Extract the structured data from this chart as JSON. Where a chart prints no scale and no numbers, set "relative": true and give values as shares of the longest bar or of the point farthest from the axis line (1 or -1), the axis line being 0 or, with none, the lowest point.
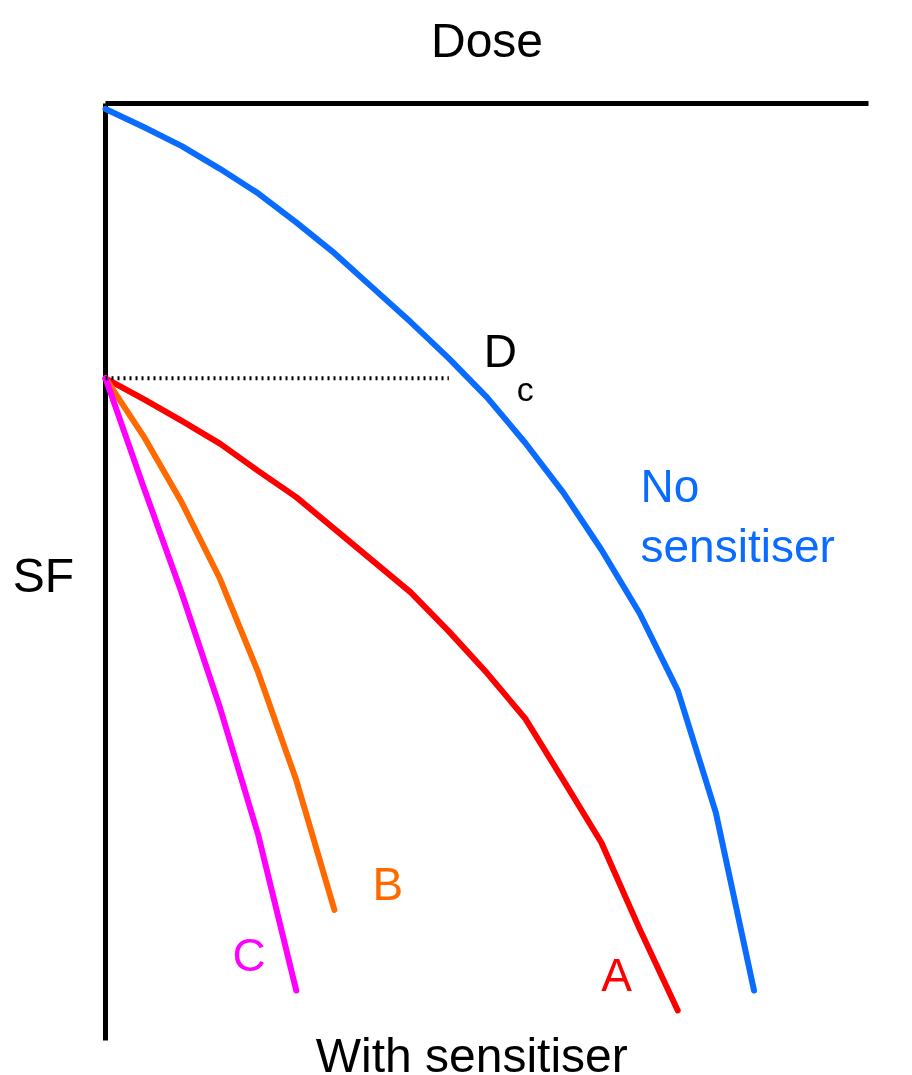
{
  "chart_data": {
    "type": "line",
    "relative": true,
    "xlabel": "Dose",
    "ylabel": "SF",
    "line_style": "solid",
    "categories": [
      null,
      null,
      null,
      null,
      null,
      null,
      null,
      null,
      null,
      null,
      null,
      null,
      null,
      null,
      null,
      null,
      null,
      null
    ],
    "series": [
      {
        "name": "No sensitiser",
        "color": "#0a6cff",
        "values": [
          -0.006,
          -0.026,
          -0.047,
          -0.072,
          -0.099,
          -0.131,
          -0.165,
          -0.203,
          -0.241,
          -0.281,
          -0.324,
          -0.374,
          -0.429,
          -0.492,
          -0.562,
          -0.647,
          -0.782,
          -0.978
        ]
      },
      {
        "name": "A",
        "color": "#ff0000",
        "values": [
          -0.303,
          -0.326,
          -0.35,
          -0.375,
          -0.405,
          -0.434,
          -0.469,
          -0.504,
          -0.539,
          -0.582,
          -0.628,
          -0.678,
          -0.746,
          -0.815,
          -0.91,
          -1,
          null,
          null
        ]
      },
      {
        "name": "B",
        "color": "#ff6a00",
        "values": [
          -0.303,
          -0.367,
          -0.44,
          -0.524,
          -0.627,
          -0.746,
          -0.889,
          null,
          null,
          null,
          null,
          null,
          null,
          null,
          null,
          null,
          null,
          null
        ]
      },
      {
        "name": "C",
        "color": "#ff00ff",
        "values": [
          -0.303,
          -0.423,
          -0.54,
          -0.666,
          -0.806,
          -0.978,
          null,
          null,
          null,
          null,
          null,
          null,
          null,
          null,
          null,
          null,
          null,
          null
        ]
      },
      {
        "color": "#000000",
        "line_style": "dotted",
        "values": [
          -0.303,
          -0.303,
          -0.303,
          -0.303,
          -0.303,
          -0.303,
          -0.303,
          -0.303,
          -0.303,
          -0.303,
          null,
          null,
          null,
          null,
          null,
          null,
          null,
          null
        ]
      }
    ],
    "annotations": [
      "D$_{c}$",
      "With sensitiser"
    ]
  }
}
